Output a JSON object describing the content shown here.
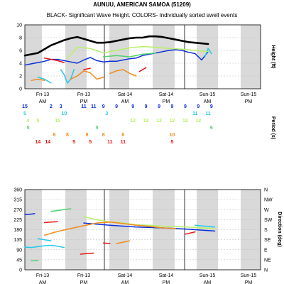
{
  "title": "AUNUU, AMERICAN SAMOA (51209)",
  "subtitle": "BLACK- Significant Wave Height.  COLORS- Individually sorted swell events",
  "colors": {
    "black": "#000000",
    "blue": "#0b2fd8",
    "cyan": "#22c8e8",
    "lime": "#b8f06a",
    "green": "#52d070",
    "orange": "#f08a1c",
    "red": "#e8160f",
    "shade": "#d9d9d9"
  },
  "x_tick_labels": [
    {
      "day": "Fri-13",
      "half": "AM"
    },
    {
      "day": "Fri-13",
      "half": "PM"
    },
    {
      "day": "Sat-14",
      "half": "AM"
    },
    {
      "day": "Sat-14",
      "half": "PM"
    },
    {
      "day": "Sun-15",
      "half": "AM"
    },
    {
      "day": "Sun-15",
      "half": "PM"
    }
  ],
  "chart_data": [
    {
      "type": "line",
      "name": "height_panel",
      "ylabel": "Height (ft)",
      "ylim": [
        0,
        10
      ],
      "yticks": [
        0,
        2,
        4,
        6,
        8,
        10
      ],
      "xlim": [
        0,
        72
      ],
      "x_unit": "hours",
      "series": [
        {
          "name": "Significant Wave Height",
          "color": "black",
          "x": [
            0,
            2,
            4,
            6,
            8,
            10,
            12,
            14,
            16,
            18,
            20,
            22,
            24,
            26,
            28,
            30,
            32,
            34,
            36,
            38,
            40,
            42,
            44,
            46,
            48,
            50,
            52,
            54,
            56
          ],
          "values": [
            5.2,
            5.4,
            5.6,
            6.2,
            6.8,
            7.2,
            7.6,
            7.9,
            8.1,
            7.8,
            7.5,
            7.2,
            7.2,
            7.3,
            7.5,
            7.7,
            7.9,
            8.0,
            8.0,
            8.2,
            8.2,
            8.1,
            7.9,
            7.7,
            7.5,
            7.3,
            7.2,
            7.1,
            7.0
          ]
        },
        {
          "name": "blue",
          "color": "blue",
          "x": [
            0,
            2,
            4,
            6,
            8,
            10,
            12,
            14,
            16,
            18,
            20,
            22,
            24,
            26,
            28,
            30,
            32,
            34,
            36,
            38,
            40,
            42,
            44,
            46,
            48,
            50,
            52,
            54,
            56
          ],
          "values": [
            3.7,
            3.9,
            4.1,
            4.3,
            4.6,
            4.6,
            4.4,
            4.2,
            4.0,
            4.5,
            4.9,
            4.4,
            4.2,
            4.3,
            4.3,
            4.5,
            4.7,
            4.8,
            5.2,
            5.4,
            5.6,
            5.8,
            6.0,
            6.1,
            6.0,
            5.7,
            5.5,
            4.5,
            5.8
          ]
        },
        {
          "name": "cyan_1",
          "color": "cyan",
          "x": [
            4,
            6,
            8
          ],
          "values": [
            1.8,
            1.5,
            0.9
          ]
        },
        {
          "name": "cyan_2",
          "color": "cyan",
          "x": [
            11,
            12,
            13,
            14,
            15
          ],
          "values": [
            3.0,
            2.2,
            0.9,
            1.5,
            3.0
          ]
        },
        {
          "name": "cyan_3",
          "color": "cyan",
          "x": [
            55,
            56,
            57
          ],
          "values": [
            5.0,
            6.3,
            5.5
          ]
        },
        {
          "name": "lime",
          "color": "lime",
          "x": [
            13,
            16,
            20,
            24,
            28,
            32,
            36,
            40,
            44,
            48,
            52,
            56
          ],
          "values": [
            4.8,
            6.5,
            6.3,
            5.6,
            6.0,
            6.4,
            6.6,
            6.5,
            6.3,
            6.2,
            6.0,
            5.8
          ]
        },
        {
          "name": "green",
          "color": "green",
          "x": [
            24,
            28,
            32,
            36,
            40
          ],
          "values": [
            5.0,
            5.2,
            5.0,
            5.4,
            5.6
          ]
        },
        {
          "name": "orange_1",
          "color": "orange",
          "x": [
            2,
            4,
            6
          ],
          "values": [
            1.3,
            1.5,
            1.3
          ]
        },
        {
          "name": "orange_2",
          "color": "orange",
          "x": [
            14,
            16,
            18,
            20,
            22,
            24
          ],
          "values": [
            1.5,
            2.0,
            2.8,
            2.5,
            1.5,
            1.8
          ]
        },
        {
          "name": "orange_3",
          "color": "orange",
          "x": [
            26,
            28,
            30,
            32,
            34
          ],
          "values": [
            2.4,
            2.8,
            3.0,
            2.4,
            2.0
          ]
        },
        {
          "name": "red_1",
          "color": "red",
          "x": [
            6,
            8,
            10,
            12
          ],
          "values": [
            4.8,
            4.6,
            4.4,
            4.1
          ]
        },
        {
          "name": "red_2",
          "color": "red",
          "x": [
            18,
            20
          ],
          "values": [
            3.0,
            3.2
          ]
        },
        {
          "name": "red_3",
          "color": "red",
          "x": [
            35,
            37
          ],
          "values": [
            2.7,
            3.3
          ]
        }
      ],
      "period_rows": [
        {
          "color": "blue",
          "values": [
            {
              "t": 0,
              "v": "15"
            },
            {
              "t": 8,
              "v": "2"
            },
            {
              "t": 11,
              "v": "3"
            },
            {
              "t": 18,
              "v": "11"
            },
            {
              "t": 21,
              "v": "11"
            },
            {
              "t": 24,
              "v": "9"
            },
            {
              "t": 28,
              "v": "9"
            },
            {
              "t": 33,
              "v": "9"
            },
            {
              "t": 37,
              "v": "9"
            },
            {
              "t": 41,
              "v": "9"
            },
            {
              "t": 45,
              "v": "9"
            },
            {
              "t": 49,
              "v": "9"
            },
            {
              "t": 53,
              "v": "9"
            },
            {
              "t": 57,
              "v": "9"
            }
          ]
        },
        {
          "color": "cyan",
          "values": [
            {
              "t": 0,
              "v": "5"
            },
            {
              "t": 12,
              "v": "10"
            },
            {
              "t": 25,
              "v": "3"
            },
            {
              "t": 52,
              "v": "11"
            },
            {
              "t": 56,
              "v": "11"
            }
          ]
        },
        {
          "color": "lime",
          "values": [
            {
              "t": 1,
              "v": "4"
            },
            {
              "t": 4,
              "v": "5"
            },
            {
              "t": 10,
              "v": "15"
            },
            {
              "t": 33,
              "v": "12"
            },
            {
              "t": 37,
              "v": "12"
            },
            {
              "t": 41,
              "v": "12"
            },
            {
              "t": 45,
              "v": "12"
            },
            {
              "t": 49,
              "v": "12"
            },
            {
              "t": 53,
              "v": "12"
            }
          ]
        },
        {
          "color": "green",
          "values": [
            {
              "t": 1,
              "v": "5"
            },
            {
              "t": 22,
              "v": "5"
            },
            {
              "t": 57,
              "v": "6"
            }
          ]
        },
        {
          "color": "orange",
          "values": [
            {
              "t": 9,
              "v": "8"
            },
            {
              "t": 13,
              "v": "8"
            },
            {
              "t": 19,
              "v": "9"
            },
            {
              "t": 24,
              "v": "8"
            },
            {
              "t": 30,
              "v": "8"
            },
            {
              "t": 45,
              "v": "10"
            }
          ]
        },
        {
          "color": "red",
          "values": [
            {
              "t": 4,
              "v": "14"
            },
            {
              "t": 7,
              "v": "14"
            },
            {
              "t": 15,
              "v": "5"
            },
            {
              "t": 20,
              "v": "5"
            },
            {
              "t": 26,
              "v": "11"
            },
            {
              "t": 30,
              "v": "11"
            },
            {
              "t": 45,
              "v": "5"
            }
          ]
        }
      ],
      "period_label": "Period (s)"
    },
    {
      "type": "line",
      "name": "direction_panel",
      "ylabel": "Direction (deg)",
      "ylim": [
        0,
        360
      ],
      "yticks": [
        0,
        45,
        90,
        135,
        180,
        225,
        270,
        315,
        360
      ],
      "compass": [
        "N",
        "NE",
        "E",
        "SE",
        "S",
        "SW",
        "W",
        "NW",
        "N"
      ],
      "xlim": [
        0,
        72
      ],
      "x_unit": "hours",
      "series": [
        {
          "name": "blue",
          "color": "blue",
          "x": [
            0,
            2,
            3
          ],
          "values": [
            248,
            250,
            252
          ]
        },
        {
          "name": "blue_main",
          "color": "blue",
          "x": [
            18,
            22,
            26,
            30,
            34,
            38,
            42,
            46,
            50,
            54,
            58
          ],
          "values": [
            210,
            205,
            200,
            196,
            192,
            190,
            188,
            185,
            182,
            178,
            174
          ]
        },
        {
          "name": "cyan_1",
          "color": "cyan",
          "x": [
            0,
            2,
            4,
            6,
            8,
            10,
            12
          ],
          "values": [
            102,
            100,
            104,
            108,
            110,
            106,
            100
          ]
        },
        {
          "name": "cyan_2",
          "color": "cyan",
          "x": [
            4,
            6,
            8
          ],
          "values": [
            140,
            135,
            130
          ]
        },
        {
          "name": "cyan_3",
          "color": "cyan",
          "x": [
            52,
            55,
            58
          ],
          "values": [
            200,
            196,
            192
          ]
        },
        {
          "name": "lime",
          "color": "lime",
          "x": [
            18,
            22,
            26,
            30,
            34,
            38,
            42,
            46,
            50,
            54,
            58
          ],
          "values": [
            238,
            225,
            215,
            210,
            202,
            200,
            196,
            194,
            192,
            188,
            186
          ]
        },
        {
          "name": "green",
          "color": "green",
          "x": [
            8,
            10,
            12,
            14
          ],
          "values": [
            262,
            266,
            270,
            274
          ]
        },
        {
          "name": "green_2",
          "color": "green",
          "x": [
            2,
            4
          ],
          "values": [
            40,
            42
          ]
        },
        {
          "name": "orange",
          "color": "orange",
          "x": [
            6,
            10,
            14,
            18,
            22,
            26,
            30,
            34,
            38,
            42,
            46
          ],
          "values": [
            155,
            172,
            185,
            198,
            210,
            214,
            208,
            200,
            195,
            188,
            185
          ]
        },
        {
          "name": "orange_2",
          "color": "orange",
          "x": [
            28,
            30,
            32
          ],
          "values": [
            118,
            124,
            130
          ]
        },
        {
          "name": "red_1",
          "color": "red",
          "x": [
            6,
            8,
            10
          ],
          "values": [
            212,
            214,
            216
          ]
        },
        {
          "name": "red_2",
          "color": "red",
          "x": [
            17,
            19,
            21
          ],
          "values": [
            70,
            73,
            75
          ]
        },
        {
          "name": "red_3",
          "color": "red",
          "x": [
            24,
            26
          ],
          "values": [
            120,
            118
          ]
        },
        {
          "name": "red_4",
          "color": "red",
          "x": [
            49,
            52
          ],
          "values": [
            160,
            170
          ]
        }
      ]
    }
  ]
}
